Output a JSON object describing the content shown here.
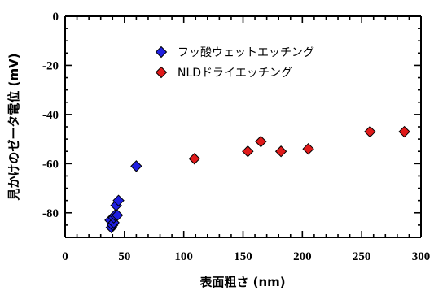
{
  "chart_data": {
    "type": "scatter",
    "xlabel": "表面粗さ (nm)",
    "ylabel": "見かけのゼータ電位 (mV)",
    "xlim": [
      0,
      300
    ],
    "ylim": [
      -90,
      0
    ],
    "x_ticks": [
      "0",
      "50",
      "100",
      "150",
      "200",
      "250",
      "300"
    ],
    "y_ticks": [
      "0",
      "-20",
      "-40",
      "-60",
      "-80"
    ],
    "grid": false,
    "legend_position": "top-center",
    "series": [
      {
        "name": "フッ酸ウェットエッチング",
        "marker": "diamond",
        "color": "#1f1fe0",
        "x": [
          38,
          39,
          40,
          41,
          41,
          42,
          43,
          44,
          45,
          60
        ],
        "y": [
          -83,
          -86,
          -85,
          -84,
          -82,
          -81,
          -77,
          -81,
          -75,
          -61
        ]
      },
      {
        "name": "NLDドライエッチング",
        "marker": "diamond",
        "color": "#e01a1a",
        "x": [
          109,
          154,
          165,
          182,
          205,
          257,
          286
        ],
        "y": [
          -58,
          -55,
          -51,
          -55,
          -54,
          -47,
          -47
        ]
      }
    ]
  }
}
